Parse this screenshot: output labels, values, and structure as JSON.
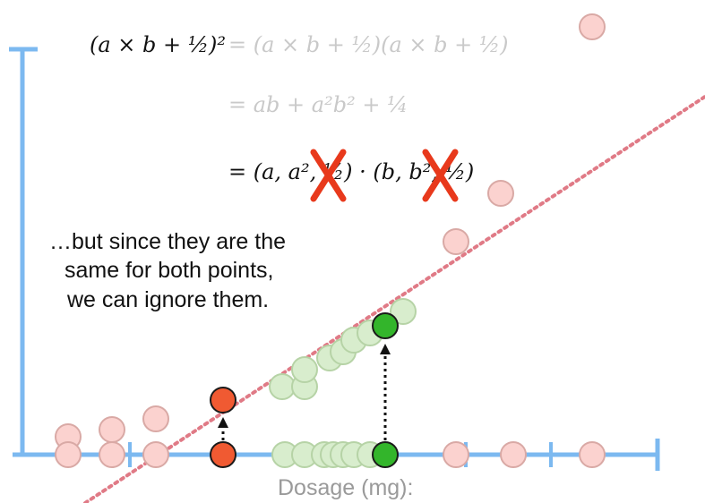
{
  "equations": {
    "line1_lhs": "(a × b + ½)²",
    "line1_rhs": "= (a × b + ½)(a × b + ½)",
    "line2": "= ab + a²b² + ¼",
    "line3_dot": "= (a, a², ½) · (b, b², ½)"
  },
  "caption": {
    "line1": "…but since they are the",
    "line2": "same for both points,",
    "line3": "we can ignore them."
  },
  "axis": {
    "xlabel": "Dosage (mg):"
  },
  "colors": {
    "axis": "#7cb9f0",
    "pink_fill": "#fbd2cf",
    "pink_stroke": "#d9a9a5",
    "green_fill": "#d8edcd",
    "green_stroke": "#b6d3a6",
    "green_active": "#33b52b",
    "red_active": "#f05a32",
    "dotted_line": "#e07a86",
    "strike": "#e8391c",
    "faded_text": "#c9c9c9"
  }
}
